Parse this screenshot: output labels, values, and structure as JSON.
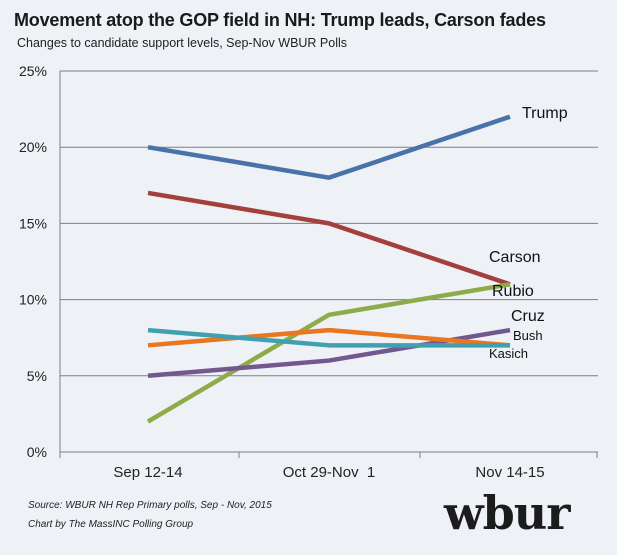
{
  "header": {
    "title": "Movement atop the GOP field in NH: Trump leads, Carson fades",
    "subtitle": "Changes to candidate support levels, Sep-Nov WBUR Polls"
  },
  "footer": {
    "source": "Source: WBUR NH Rep Primary polls, Sep - Nov, 2015",
    "credit": "Chart by The MassINC Polling Group",
    "logo": "wbur"
  },
  "chart_data": {
    "type": "line",
    "title": "Movement atop the GOP field in NH: Trump leads, Carson fades",
    "subtitle": "Changes to candidate support levels, Sep-Nov WBUR Polls",
    "categories": [
      "Sep 12-14",
      "Oct 29-Nov  1",
      "Nov 14-15"
    ],
    "ylim": [
      0,
      25
    ],
    "yticks": [
      0,
      5,
      10,
      15,
      20,
      25
    ],
    "ytick_labels": [
      "0%",
      "5%",
      "10%",
      "15%",
      "20%",
      "25%"
    ],
    "grid": true,
    "legend": "direct labels at line ends",
    "series": [
      {
        "name": "Trump",
        "values": [
          20,
          18,
          22
        ],
        "color": "#4a72a8"
      },
      {
        "name": "Carson",
        "values": [
          17,
          15,
          11
        ],
        "color": "#a3403e"
      },
      {
        "name": "Rubio",
        "values": [
          2,
          9,
          11
        ],
        "color": "#8eab4a"
      },
      {
        "name": "Cruz",
        "values": [
          5,
          6,
          8
        ],
        "color": "#73588f"
      },
      {
        "name": "Bush",
        "values": [
          7,
          8,
          7
        ],
        "color": "#e8771f"
      },
      {
        "name": "Kasich",
        "values": [
          8,
          7,
          7
        ],
        "color": "#41a0b0"
      }
    ]
  }
}
